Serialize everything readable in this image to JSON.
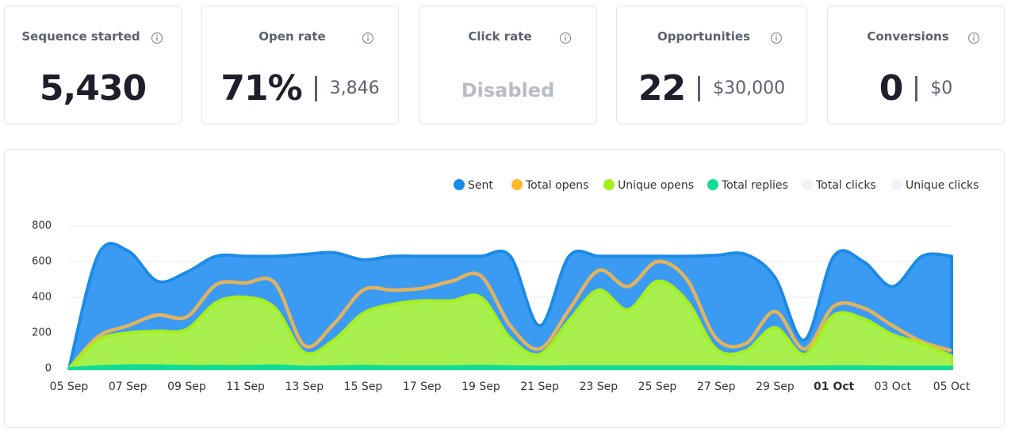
{
  "cards": [
    {
      "title": "Sequence started",
      "value": "5,430"
    },
    {
      "title": "Open rate",
      "value": "71%",
      "secondary": "3,846"
    },
    {
      "title": "Click rate",
      "value": "Disabled"
    },
    {
      "title": "Opportunities",
      "value": "22",
      "secondary": "$30,000"
    },
    {
      "title": "Conversions",
      "value": "0",
      "secondary": "$0"
    }
  ],
  "chart_data": {
    "type": "area",
    "categories": [
      "05 Sep",
      null,
      "07 Sep",
      null,
      "09 Sep",
      null,
      "11 Sep",
      null,
      "13 Sep",
      null,
      "15 Sep",
      null,
      "17 Sep",
      null,
      "19 Sep",
      null,
      "21 Sep",
      null,
      "23 Sep",
      null,
      "25 Sep",
      null,
      "27 Sep",
      null,
      "29 Sep",
      null,
      "01 Oct",
      null,
      "03 Oct",
      null,
      "05 Oct"
    ],
    "series": [
      {
        "name": "Sent",
        "color": "#1a8ce8",
        "fill": "#3b9bf3",
        "style": "area",
        "values": [
          0,
          640,
          660,
          490,
          540,
          630,
          630,
          630,
          640,
          650,
          610,
          630,
          630,
          630,
          630,
          630,
          240,
          630,
          630,
          630,
          630,
          630,
          635,
          640,
          510,
          160,
          630,
          600,
          460,
          630,
          630
        ]
      },
      {
        "name": "Total opens",
        "color": "#fbb829",
        "stroke": "#e2b35c",
        "style": "line",
        "values": [
          0,
          180,
          240,
          300,
          290,
          470,
          480,
          480,
          130,
          250,
          440,
          440,
          450,
          490,
          520,
          240,
          110,
          330,
          550,
          460,
          600,
          500,
          170,
          140,
          320,
          110,
          350,
          340,
          240,
          150,
          100
        ]
      },
      {
        "name": "Unique opens",
        "color": "#a6ef1a",
        "fill": "#a8f04e",
        "style": "area",
        "values": [
          0,
          160,
          200,
          210,
          220,
          370,
          400,
          340,
          90,
          160,
          310,
          360,
          380,
          380,
          400,
          170,
          80,
          270,
          440,
          330,
          490,
          380,
          110,
          100,
          230,
          80,
          300,
          280,
          190,
          140,
          70
        ]
      },
      {
        "name": "Total replies",
        "color": "#10dc95",
        "fill": "#18d98f",
        "style": "area",
        "values": [
          0,
          10,
          15,
          15,
          12,
          12,
          12,
          15,
          8,
          10,
          12,
          10,
          10,
          10,
          12,
          10,
          8,
          10,
          10,
          10,
          10,
          10,
          10,
          8,
          8,
          8,
          10,
          10,
          8,
          8,
          8
        ]
      },
      {
        "name": "Total clicks",
        "color": "#eef5fa",
        "hidden": true
      },
      {
        "name": "Unique clicks",
        "color": "#eef5fa",
        "hidden": true
      }
    ],
    "ylim": [
      0,
      800
    ],
    "yticks": [
      0,
      200,
      400,
      600,
      800
    ],
    "grid": true,
    "legend": "top-right"
  }
}
